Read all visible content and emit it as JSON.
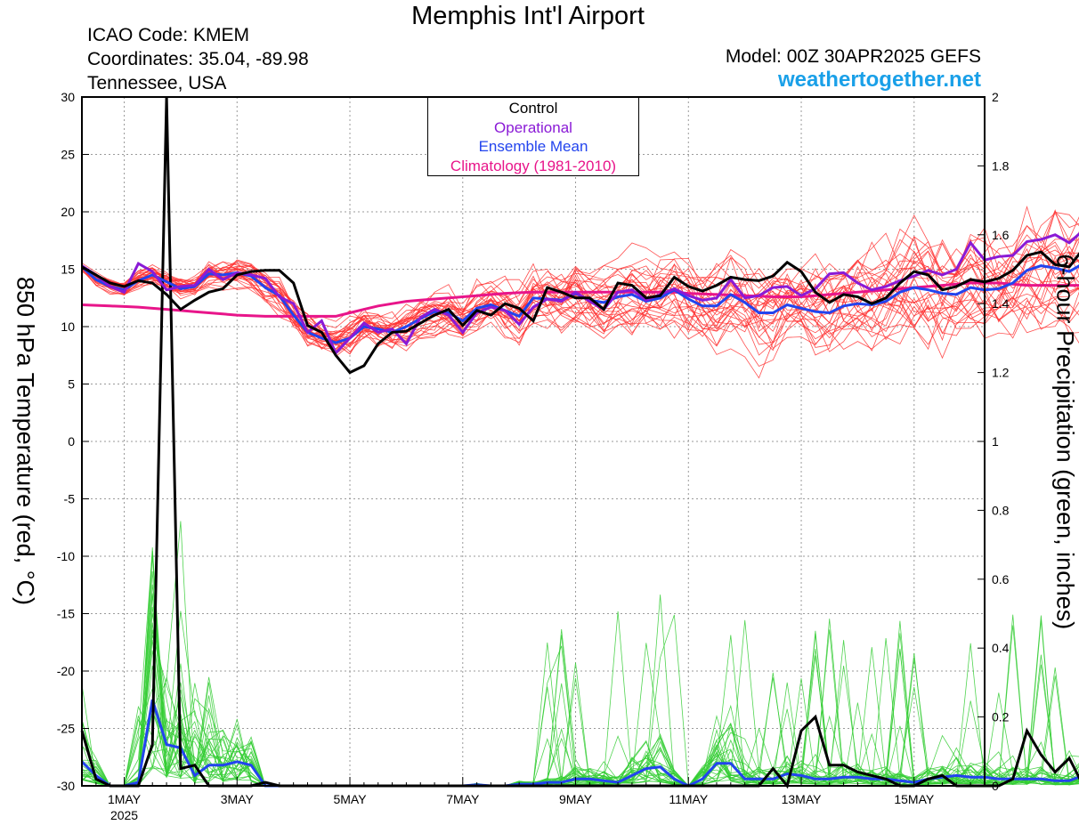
{
  "header": {
    "title": "Memphis Int'l Airport",
    "icao": "ICAO Code: KMEM",
    "coords": "Coordinates: 35.04, -89.98",
    "region": "Tennessee, USA",
    "model": "Model: 00Z 30APR2025 GEFS",
    "site": "weathertogether.net"
  },
  "legend": {
    "control": "Control",
    "operational": "Operational",
    "ensemble_mean": "Ensemble Mean",
    "climatology": "Climatology (1981-2010)"
  },
  "colors": {
    "control": "#000000",
    "operational": "#8a1ad6",
    "ensemble_mean": "#2244ee",
    "climatology": "#e8158a",
    "members_temp": "#ff3030",
    "members_precip": "#33cc33",
    "site": "#1aa0e8"
  },
  "chart_data": {
    "type": "line",
    "title": "Memphis Int'l Airport",
    "ylabel": "850 hPa Temperature (red, °C)",
    "y2label": "6-hour Precipitation (green, inches)",
    "ylim": [
      -30,
      30
    ],
    "y2lim": [
      0,
      2
    ],
    "xlim_days": [
      0,
      16
    ],
    "yticks": [
      -30,
      -25,
      -20,
      -15,
      -10,
      -5,
      0,
      5,
      10,
      15,
      20,
      25,
      30
    ],
    "y2ticks": [
      "0",
      "0.2",
      "0.4",
      "0.6",
      "0.8",
      "1",
      "1.2",
      "1.4",
      "1.6",
      "1.8",
      "2"
    ],
    "xticks": [
      {
        "day": 0.75,
        "label": "1MAY",
        "sub": "2025"
      },
      {
        "day": 2.75,
        "label": "3MAY",
        "sub": ""
      },
      {
        "day": 4.75,
        "label": "5MAY",
        "sub": ""
      },
      {
        "day": 6.75,
        "label": "7MAY",
        "sub": ""
      },
      {
        "day": 8.75,
        "label": "9MAY",
        "sub": ""
      },
      {
        "day": 10.75,
        "label": "11MAY",
        "sub": ""
      },
      {
        "day": 12.75,
        "label": "13MAY",
        "sub": ""
      },
      {
        "day": 14.75,
        "label": "15MAY",
        "sub": ""
      }
    ],
    "step_hours": 6,
    "temperature": {
      "control": [
        15.2,
        14.5,
        13.8,
        13.5,
        14.0,
        13.8,
        12.8,
        11.5,
        12.3,
        13.0,
        13.3,
        14.5,
        14.8,
        14.9,
        14.9,
        13.8,
        10.1,
        9.5,
        7.5,
        6.0,
        6.6,
        8.5,
        9.5,
        9.6,
        10.3,
        11.0,
        11.5,
        10.1,
        11.4,
        11.0,
        12.0,
        11.6,
        10.5,
        13.4,
        13.0,
        12.5,
        12.5,
        11.5,
        13.8,
        13.6,
        12.5,
        12.7,
        14.3,
        13.5,
        13.1,
        13.6,
        14.3,
        14.1,
        14.0,
        14.4,
        15.6,
        14.8,
        13.0,
        12.1,
        12.8,
        12.6,
        12.0,
        12.5,
        13.8,
        14.8,
        14.5,
        13.2,
        13.5,
        14.1,
        13.9,
        14.2,
        14.9,
        16.2,
        16.5,
        15.4,
        15.2,
        16.8
      ],
      "operational": [
        15.3,
        14.5,
        13.5,
        13.0,
        15.5,
        14.8,
        13.2,
        13.5,
        13.6,
        15.0,
        14.1,
        14.7,
        14.5,
        14.2,
        12.6,
        12.0,
        9.5,
        10.5,
        7.7,
        9.0,
        10.3,
        9.5,
        9.8,
        8.5,
        10.8,
        11.5,
        11.0,
        9.5,
        11.2,
        11.7,
        11.4,
        10.2,
        11.7,
        12.4,
        12.2,
        13.0,
        12.2,
        11.5,
        13.0,
        13.2,
        12.3,
        12.8,
        13.3,
        12.7,
        12.3,
        12.5,
        14.1,
        12.5,
        12.7,
        13.4,
        13.5,
        12.7,
        13.3,
        14.6,
        14.7,
        13.8,
        13.2,
        13.5,
        14.0,
        14.4,
        14.9,
        14.5,
        15.0,
        17.3,
        15.8,
        16.1,
        16.2,
        17.4,
        17.6,
        18.0,
        17.3,
        18.4
      ],
      "ensemble_mean": [
        15.2,
        14.1,
        13.5,
        13.2,
        14.0,
        14.5,
        13.9,
        13.3,
        13.5,
        14.6,
        14.5,
        14.7,
        14.4,
        13.4,
        12.7,
        11.0,
        9.5,
        9.0,
        8.6,
        9.0,
        10.0,
        9.8,
        9.5,
        10.0,
        10.7,
        11.3,
        11.2,
        10.5,
        11.6,
        11.9,
        11.4,
        10.9,
        12.5,
        12.4,
        12.3,
        12.9,
        12.3,
        12.1,
        12.6,
        12.8,
        12.2,
        12.5,
        13.2,
        12.4,
        11.8,
        11.8,
        12.8,
        12.1,
        11.2,
        11.2,
        11.9,
        11.6,
        11.3,
        11.2,
        11.8,
        12.0,
        11.9,
        12.2,
        13.0,
        13.4,
        13.2,
        12.9,
        12.8,
        13.4,
        13.2,
        13.3,
        13.8,
        14.9,
        15.3,
        15.1,
        14.8,
        15.5
      ],
      "climatology": [
        11.9,
        11.85,
        11.8,
        11.75,
        11.7,
        11.6,
        11.5,
        11.4,
        11.3,
        11.2,
        11.1,
        11.0,
        10.95,
        10.9,
        10.9,
        10.9,
        10.9,
        10.9,
        10.9,
        11.2,
        11.5,
        11.8,
        12.0,
        12.2,
        12.3,
        12.4,
        12.5,
        12.6,
        12.7,
        12.8,
        12.9,
        12.95,
        13.0,
        13.0,
        13.0,
        13.0,
        13.0,
        13.0,
        13.0,
        13.0,
        13.0,
        13.0,
        13.0,
        12.9,
        12.85,
        12.8,
        12.75,
        12.7,
        12.65,
        12.6,
        12.6,
        12.6,
        12.7,
        12.8,
        12.9,
        13.0,
        13.1,
        13.2,
        13.3,
        13.4,
        13.5,
        13.6,
        13.7,
        13.8,
        13.8,
        13.8,
        13.7,
        13.6,
        13.6,
        13.6,
        13.6,
        13.6
      ]
    },
    "precipitation": {
      "control": [
        0.16,
        0.02,
        0.0,
        0.0,
        0.0,
        0.12,
        2.0,
        0.05,
        0.06,
        0.0,
        0.0,
        0.0,
        0.0,
        0.01,
        0.0,
        0.0,
        0.0,
        0.0,
        0.0,
        0.0,
        0.0,
        0.0,
        0.0,
        0.0,
        0.0,
        0.0,
        0.0,
        0.0,
        0.0,
        0.0,
        0.0,
        0.0,
        0.0,
        0.0,
        0.0,
        0.0,
        0.0,
        0.0,
        0.0,
        0.0,
        0.0,
        0.0,
        0.0,
        0.0,
        0.0,
        0.0,
        0.0,
        0.0,
        0.0,
        0.05,
        0.0,
        0.16,
        0.2,
        0.06,
        0.06,
        0.04,
        0.03,
        0.02,
        0.0,
        0.0,
        0.02,
        0.03,
        0.0,
        0.0,
        0.0,
        0.0,
        0.02,
        0.16,
        0.09,
        0.04,
        0.08,
        0.0
      ],
      "ensemble_mean": [
        0.07,
        0.03,
        0.0,
        0.0,
        0.01,
        0.25,
        0.12,
        0.11,
        0.03,
        0.06,
        0.06,
        0.07,
        0.06,
        0.0,
        0.0,
        0.0,
        0.0,
        0.0,
        0.0,
        0.0,
        0.0,
        0.0,
        0.0,
        0.0,
        0.0,
        0.0,
        0.0,
        0.0,
        0.003,
        0.0,
        0.0,
        0.005,
        0.005,
        0.01,
        0.01,
        0.02,
        0.02,
        0.015,
        0.01,
        0.03,
        0.05,
        0.055,
        0.02,
        0.0,
        0.02,
        0.065,
        0.065,
        0.02,
        0.02,
        0.02,
        0.035,
        0.03,
        0.02,
        0.02,
        0.025,
        0.025,
        0.02,
        0.02,
        0.015,
        0.01,
        0.02,
        0.025,
        0.03,
        0.025,
        0.025,
        0.02,
        0.02,
        0.02,
        0.02,
        0.015,
        0.015,
        0.03
      ]
    }
  }
}
